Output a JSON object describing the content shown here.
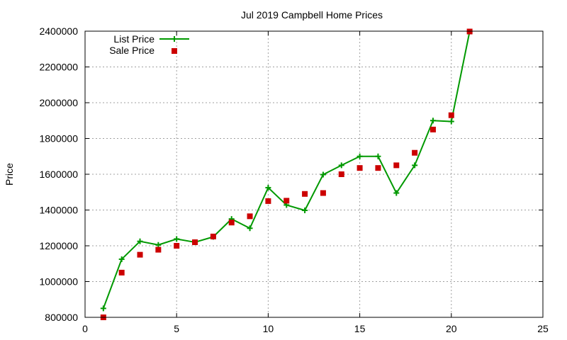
{
  "chart_data": {
    "type": "line",
    "title": "Jul 2019 Campbell Home Prices",
    "xlabel": "",
    "ylabel": "Price",
    "xlim": [
      0,
      25
    ],
    "ylim": [
      800000,
      2400000
    ],
    "xticks": [
      0,
      5,
      10,
      15,
      20,
      25
    ],
    "yticks": [
      800000,
      1000000,
      1200000,
      1400000,
      1600000,
      1800000,
      2000000,
      2200000,
      2400000
    ],
    "grid": true,
    "legend_position": "top-left",
    "series": [
      {
        "name": "List Price",
        "style": "line-points",
        "color": "#009900",
        "marker": "plus",
        "x": [
          1,
          2,
          3,
          4,
          5,
          6,
          7,
          8,
          9,
          10,
          11,
          12,
          13,
          14,
          15,
          16,
          17,
          18,
          19,
          20,
          21
        ],
        "y": [
          850000,
          1125000,
          1225000,
          1205000,
          1238000,
          1220000,
          1250000,
          1350000,
          1298000,
          1525000,
          1428000,
          1398000,
          1598000,
          1650000,
          1700000,
          1700000,
          1495000,
          1650000,
          1900000,
          1895000,
          2398000
        ]
      },
      {
        "name": "Sale Price",
        "style": "points",
        "color": "#cc0000",
        "marker": "square",
        "x": [
          1,
          2,
          3,
          4,
          5,
          6,
          7,
          8,
          9,
          10,
          11,
          12,
          13,
          14,
          15,
          16,
          17,
          18,
          19,
          20,
          21
        ],
        "y": [
          800000,
          1050000,
          1150000,
          1178000,
          1200000,
          1220000,
          1252000,
          1330000,
          1365000,
          1450000,
          1452000,
          1490000,
          1495000,
          1600000,
          1635000,
          1635000,
          1650000,
          1720000,
          1850000,
          1930000,
          2398000
        ]
      }
    ]
  }
}
